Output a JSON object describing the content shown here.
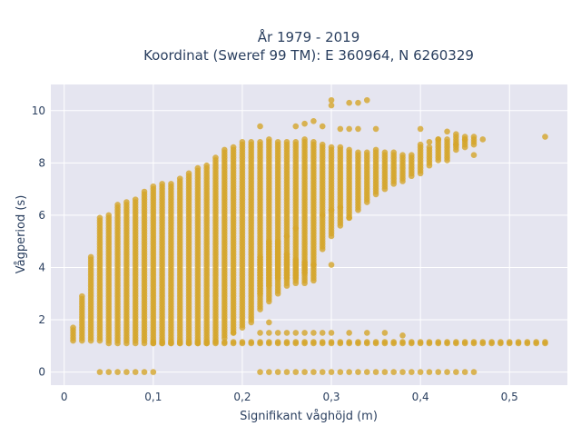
{
  "chart_data": {
    "type": "scatter",
    "title_lines": [
      "År 1979 - 2019",
      "Koordinat (Sweref 99 TM): E 360964, N 6260329"
    ],
    "xlabel": "Signifikant våghöjd (m)",
    "ylabel": "Vågperiod (s)",
    "xlim": [
      -0.015,
      0.565
    ],
    "ylim": [
      -0.5,
      11.0
    ],
    "x_ticks": [
      0,
      0.1,
      0.2,
      0.3,
      0.4,
      0.5
    ],
    "x_tick_labels": [
      "0",
      "0,1",
      "0,2",
      "0,3",
      "0,4",
      "0,5"
    ],
    "y_ticks": [
      0,
      2,
      4,
      6,
      8,
      10
    ],
    "y_tick_labels": [
      "0",
      "2",
      "4",
      "6",
      "8",
      "10"
    ],
    "grid": true,
    "marker_color": "#d4a52a",
    "plot_bg": "#e5e5f0",
    "series": [
      {
        "description": "main band: for each wave height, a vertical run of wave periods [x, y_min, y_max]",
        "columns": [
          [
            0.01,
            1.2,
            1.7
          ],
          [
            0.02,
            1.2,
            2.9
          ],
          [
            0.03,
            1.2,
            4.4
          ],
          [
            0.04,
            1.2,
            5.9
          ],
          [
            0.05,
            1.1,
            6.0
          ],
          [
            0.06,
            1.1,
            6.4
          ],
          [
            0.07,
            1.1,
            6.5
          ],
          [
            0.08,
            1.1,
            6.6
          ],
          [
            0.09,
            1.1,
            6.9
          ],
          [
            0.1,
            1.1,
            7.1
          ],
          [
            0.11,
            1.1,
            7.2
          ],
          [
            0.12,
            1.1,
            7.2
          ],
          [
            0.13,
            1.1,
            7.4
          ],
          [
            0.14,
            1.1,
            7.6
          ],
          [
            0.15,
            1.1,
            7.8
          ],
          [
            0.16,
            1.1,
            7.9
          ],
          [
            0.17,
            1.2,
            8.2
          ],
          [
            0.18,
            1.3,
            8.5
          ],
          [
            0.19,
            1.5,
            8.6
          ],
          [
            0.2,
            1.7,
            8.8
          ],
          [
            0.21,
            2.0,
            8.8
          ],
          [
            0.22,
            2.4,
            8.8
          ],
          [
            0.23,
            2.7,
            8.9
          ],
          [
            0.24,
            3.0,
            8.8
          ],
          [
            0.25,
            3.3,
            8.8
          ],
          [
            0.26,
            3.6,
            8.8
          ],
          [
            0.27,
            3.8,
            8.9
          ],
          [
            0.28,
            4.1,
            8.8
          ],
          [
            0.29,
            4.7,
            8.7
          ],
          [
            0.3,
            5.2,
            8.6
          ],
          [
            0.31,
            5.6,
            8.6
          ],
          [
            0.32,
            5.9,
            8.5
          ],
          [
            0.33,
            6.2,
            8.4
          ],
          [
            0.34,
            6.5,
            8.4
          ],
          [
            0.35,
            6.8,
            8.5
          ],
          [
            0.36,
            7.0,
            8.4
          ],
          [
            0.37,
            7.2,
            8.4
          ],
          [
            0.38,
            7.3,
            8.3
          ],
          [
            0.39,
            7.5,
            8.3
          ],
          [
            0.4,
            7.6,
            8.7
          ],
          [
            0.41,
            7.9,
            8.6
          ],
          [
            0.42,
            8.1,
            8.9
          ],
          [
            0.43,
            8.1,
            8.9
          ],
          [
            0.44,
            8.5,
            9.1
          ],
          [
            0.45,
            8.6,
            9.0
          ],
          [
            0.46,
            8.8,
            9.0
          ]
        ],
        "lower_branch": [
          [
            0.22,
            3.0,
            4.4
          ],
          [
            0.23,
            3.3,
            5.0
          ],
          [
            0.24,
            3.6,
            5.0
          ],
          [
            0.25,
            3.6,
            4.5
          ],
          [
            0.26,
            3.4,
            4.3
          ],
          [
            0.27,
            3.4,
            4.2
          ],
          [
            0.28,
            3.5,
            4.1
          ]
        ]
      },
      {
        "description": "low-period band near 1.1 s",
        "x_start": 0.1,
        "x_end": 0.54,
        "step": 0.01,
        "y": 1.1
      },
      {
        "description": "calm / zero-period points",
        "x": [
          0.04,
          0.05,
          0.06,
          0.07,
          0.08,
          0.09,
          0.1,
          0.22,
          0.23,
          0.24,
          0.25,
          0.26,
          0.27,
          0.28,
          0.29,
          0.3,
          0.31,
          0.32,
          0.33,
          0.34,
          0.35,
          0.36,
          0.37,
          0.38,
          0.39,
          0.4,
          0.41,
          0.42,
          0.43,
          0.44,
          0.45,
          0.46
        ],
        "y": 0
      },
      {
        "description": "scattered outliers",
        "points": [
          [
            0.3,
            10.4
          ],
          [
            0.3,
            10.2
          ],
          [
            0.32,
            10.3
          ],
          [
            0.33,
            10.3
          ],
          [
            0.34,
            10.4
          ],
          [
            0.22,
            9.4
          ],
          [
            0.26,
            9.4
          ],
          [
            0.27,
            9.5
          ],
          [
            0.28,
            9.6
          ],
          [
            0.29,
            9.4
          ],
          [
            0.31,
            9.3
          ],
          [
            0.32,
            9.3
          ],
          [
            0.33,
            9.3
          ],
          [
            0.35,
            9.3
          ],
          [
            0.4,
            9.3
          ],
          [
            0.41,
            8.8
          ],
          [
            0.42,
            8.9
          ],
          [
            0.43,
            9.2
          ],
          [
            0.44,
            8.7
          ],
          [
            0.45,
            8.9
          ],
          [
            0.46,
            8.7
          ],
          [
            0.47,
            8.9
          ],
          [
            0.54,
            9.0
          ],
          [
            0.46,
            8.3
          ],
          [
            0.3,
            4.1
          ],
          [
            0.29,
            6.0
          ],
          [
            0.3,
            6.2
          ],
          [
            0.31,
            6.3
          ],
          [
            0.32,
            5.9
          ],
          [
            0.25,
            5.2
          ],
          [
            0.26,
            5.5
          ],
          [
            0.23,
            1.9
          ],
          [
            0.21,
            1.9
          ],
          [
            0.19,
            1.5
          ],
          [
            0.22,
            1.5
          ],
          [
            0.23,
            1.5
          ],
          [
            0.24,
            1.5
          ],
          [
            0.25,
            1.5
          ],
          [
            0.26,
            1.5
          ],
          [
            0.27,
            1.5
          ],
          [
            0.28,
            1.5
          ],
          [
            0.29,
            1.5
          ],
          [
            0.3,
            1.5
          ],
          [
            0.32,
            1.5
          ],
          [
            0.34,
            1.5
          ],
          [
            0.36,
            1.5
          ],
          [
            0.38,
            1.4
          ]
        ]
      }
    ]
  }
}
